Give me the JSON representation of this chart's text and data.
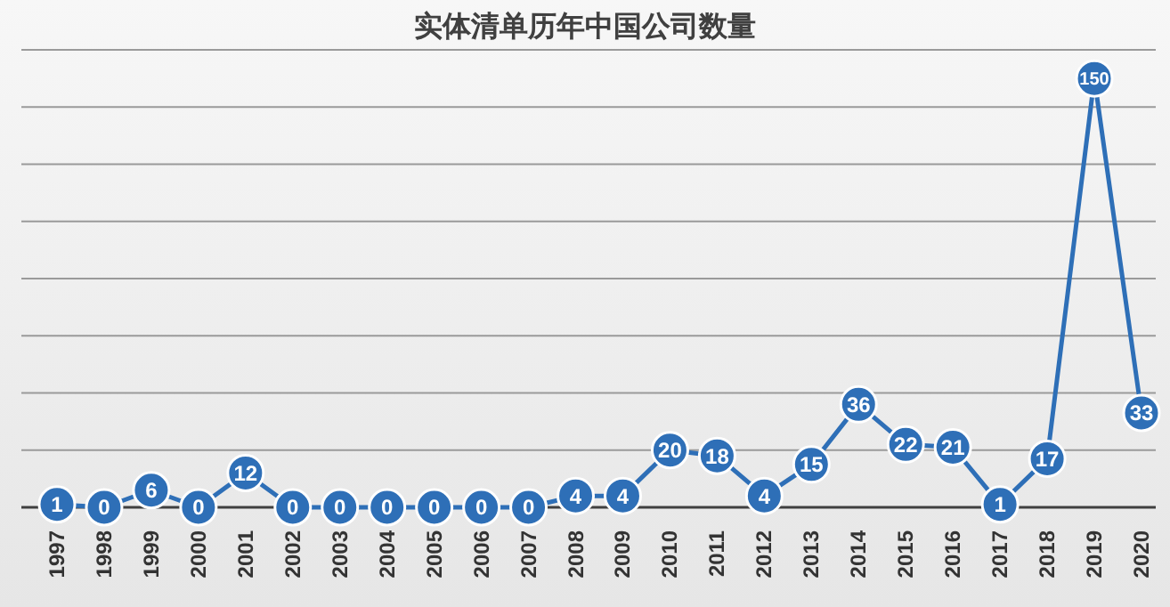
{
  "chart_data": {
    "type": "line",
    "title": "实体清单历年中国公司数量",
    "categories": [
      "1997",
      "1998",
      "1999",
      "2000",
      "2001",
      "2002",
      "2003",
      "2004",
      "2005",
      "2006",
      "2007",
      "2008",
      "2009",
      "2010",
      "2011",
      "2012",
      "2013",
      "2014",
      "2015",
      "2016",
      "2017",
      "2018",
      "2019",
      "2020"
    ],
    "series": [
      {
        "color": "#2e6fb7",
        "values": [
          1,
          0,
          6,
          0,
          12,
          0,
          0,
          0,
          0,
          0,
          0,
          4,
          4,
          20,
          18,
          4,
          15,
          36,
          22,
          21,
          1,
          17,
          150,
          33
        ]
      }
    ],
    "ylim": [
      0,
      160
    ],
    "yticks": [
      {
        "value": 0,
        "label": null
      },
      {
        "value": 20,
        "label": null
      },
      {
        "value": 40,
        "label": null
      },
      {
        "value": 60,
        "label": null
      },
      {
        "value": 80,
        "label": null
      },
      {
        "value": 100,
        "label": null
      },
      {
        "value": 120,
        "label": null
      },
      {
        "value": 140,
        "label": null
      },
      {
        "value": 160,
        "label": null
      }
    ],
    "tick_labels": "x",
    "grid": "y",
    "marker": "circle",
    "line_style": "solid",
    "data_labels": true
  }
}
